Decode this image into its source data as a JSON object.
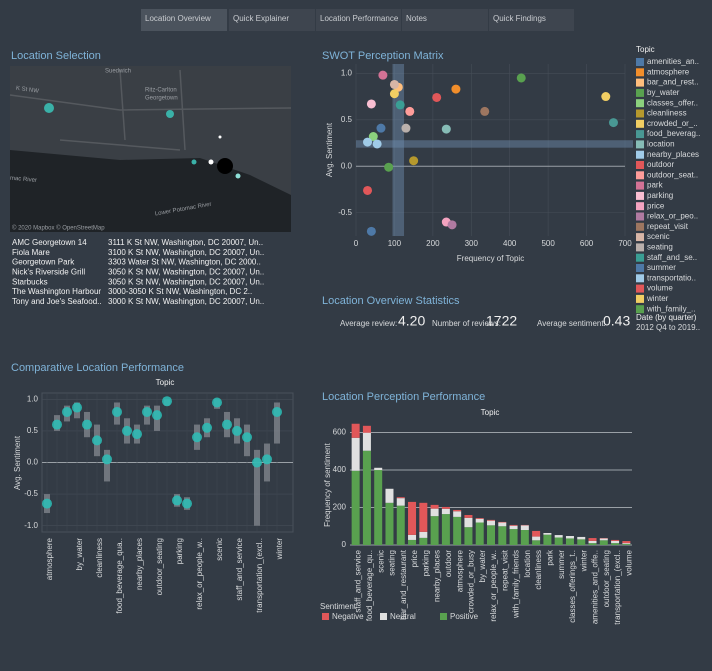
{
  "tabs": [
    "Location Overview",
    "Quick Explainer",
    "Location Performance",
    "Notes",
    "Quick Findings"
  ],
  "map": {
    "title": "Location Selection",
    "labels": [
      "Suedwich",
      "Ritz-Carlton",
      "Georgetown",
      "K St NW",
      "mac River",
      "Lower Potomac River"
    ],
    "attribution": "© 2020 Mapbox © OpenStreetMap"
  },
  "locations": [
    [
      "AMC Georgetown 14",
      "3111 K St NW, Washington, DC 20007, Un.."
    ],
    [
      "Fiola Mare",
      "3100 K St NW, Washington, DC 20007, Un.."
    ],
    [
      "Georgetown Park",
      "3303 Water St NW, Washington, DC 2000.."
    ],
    [
      "Nick's Riverside Grill",
      "3050 K St NW, Washington, DC 20007, Un.."
    ],
    [
      "Starbucks",
      "3050 K St NW, Washington, DC 20007, Un.."
    ],
    [
      "The Washington Harbour",
      "3000-3050 K St NW, Washington, DC 2.."
    ],
    [
      "Tony and Joe's Seafood..",
      "3000 K St NW, Washington, DC 20007, Un.."
    ]
  ],
  "stats": {
    "title": "Location Overview Statistics",
    "items": [
      {
        "label": "Average review:",
        "value": "4.20"
      },
      {
        "label": "Number of reviews:",
        "value": "1722"
      },
      {
        "label": "Average sentiment:",
        "value": "0.43"
      }
    ]
  },
  "date_filter": {
    "title": "Date (by quarter)",
    "value": "2012 Q4 to 2019.."
  },
  "chart_data": [
    {
      "type": "scatter",
      "title": "SWOT Perception Matrix",
      "x_label": "Frequency of Topic",
      "y_label": "Avg. Sentiment",
      "legend_title": "Topic",
      "xlim": [
        0,
        700
      ],
      "xticks": [
        0,
        100,
        200,
        300,
        400,
        500,
        600,
        700
      ],
      "ylim": [
        -0.75,
        1.1
      ],
      "yticks": [
        -0.5,
        {
          "value": 0,
          "label": "0.0"
        },
        0.5,
        {
          "value": 1,
          "label": "1.0"
        }
      ],
      "x_band": [
        95,
        125
      ],
      "y_band": [
        0.2,
        0.28
      ],
      "series": [
        {
          "name": "amenities_an..",
          "color": "#4e79a7",
          "x": [
            40
          ],
          "values": [
            -0.7
          ]
        },
        {
          "name": "atmosphere",
          "color": "#f28e2b",
          "x": [
            260
          ],
          "values": [
            0.83
          ]
        },
        {
          "name": "bar_and_rest..",
          "color": "#ffbe7d",
          "x": [
            110
          ],
          "values": [
            0.85
          ]
        },
        {
          "name": "by_water",
          "color": "#59a14f",
          "x": [
            430
          ],
          "values": [
            0.95
          ]
        },
        {
          "name": "classes_offer..",
          "color": "#8cd17d",
          "x": [
            45
          ],
          "values": [
            0.32
          ]
        },
        {
          "name": "cleanliness",
          "color": "#b6992d",
          "x": [
            150
          ],
          "values": [
            0.06
          ]
        },
        {
          "name": "crowded_or_..",
          "color": "#f1ce63",
          "x": [
            100
          ],
          "values": [
            0.78
          ]
        },
        {
          "name": "food_beverag..",
          "color": "#499894",
          "x": [
            670
          ],
          "values": [
            0.47
          ]
        },
        {
          "name": "location",
          "color": "#86bcb6",
          "x": [
            235
          ],
          "values": [
            0.4
          ]
        },
        {
          "name": "nearby_places",
          "color": "#a0cbe8",
          "x": [
            30
          ],
          "values": [
            0.26
          ]
        },
        {
          "name": "outdoor",
          "color": "#e15759",
          "x": [
            210
          ],
          "values": [
            0.74
          ]
        },
        {
          "name": "outdoor_seat..",
          "color": "#ff9d9a",
          "x": [
            140
          ],
          "values": [
            0.59
          ]
        },
        {
          "name": "park",
          "color": "#d37295",
          "x": [
            70
          ],
          "values": [
            0.98
          ]
        },
        {
          "name": "parking",
          "color": "#fabfd2",
          "x": [
            40
          ],
          "values": [
            0.67
          ]
        },
        {
          "name": "price",
          "color": "#f4a3c0",
          "x": [
            235
          ],
          "values": [
            -0.6
          ]
        },
        {
          "name": "relax_or_peo..",
          "color": "#b07aa1",
          "x": [
            250
          ],
          "values": [
            -0.63
          ]
        },
        {
          "name": "repeat_visit",
          "color": "#9d7660",
          "x": [
            335
          ],
          "values": [
            0.59
          ]
        },
        {
          "name": "scenic",
          "color": "#d7b5a6",
          "x": [
            100
          ],
          "values": [
            0.88
          ]
        },
        {
          "name": "seating",
          "color": "#bab0ac",
          "x": [
            130
          ],
          "values": [
            0.41
          ]
        },
        {
          "name": "staff_and_se..",
          "color": "#3a9e94",
          "x": [
            115
          ],
          "values": [
            0.66
          ]
        },
        {
          "name": "summer",
          "color": "#4e79a7",
          "x": [
            65
          ],
          "values": [
            0.41
          ]
        },
        {
          "name": "transportatio..",
          "color": "#a0cbe8",
          "x": [
            55
          ],
          "values": [
            0.24
          ]
        },
        {
          "name": "volume",
          "color": "#e15759",
          "x": [
            30
          ],
          "values": [
            -0.26
          ]
        },
        {
          "name": "winter",
          "color": "#f1ce63",
          "x": [
            650
          ],
          "values": [
            0.75
          ]
        },
        {
          "name": "with_family_..",
          "color": "#59a14f",
          "x": [
            85
          ],
          "values": [
            -0.01
          ]
        }
      ]
    },
    {
      "type": "box",
      "title": "Comparative Location Performance",
      "top_label": "Topic",
      "y_label": "Avg. Sentiment",
      "categories": [
        "atmosphere",
        null,
        null,
        "by_water",
        null,
        "cleanliness",
        null,
        "food_beverage_qua..",
        null,
        "nearby_places",
        null,
        "outdoor_seating",
        null,
        "parking",
        null,
        "relax_or_people_w..",
        null,
        "scenic",
        null,
        "staff_and_service",
        null,
        "transportation_(excl..",
        null,
        "winter"
      ],
      "values": [
        -0.65,
        0.6,
        0.8,
        0.87,
        0.6,
        0.35,
        0.05,
        0.8,
        0.5,
        0.45,
        0.8,
        0.75,
        0.97,
        -0.6,
        -0.65,
        0.4,
        0.55,
        0.95,
        0.6,
        0.5,
        0.4,
        0.0,
        0.05,
        0.8
      ],
      "box_low": [
        -0.8,
        0.5,
        0.65,
        0.7,
        0.4,
        0.1,
        -0.3,
        0.6,
        0.3,
        0.3,
        0.6,
        0.5,
        0.9,
        -0.7,
        -0.75,
        0.2,
        0.4,
        0.85,
        0.4,
        0.3,
        0.1,
        -1.0,
        -0.3,
        0.3
      ],
      "box_high": [
        -0.5,
        0.75,
        0.9,
        0.95,
        0.8,
        0.6,
        0.2,
        0.95,
        0.7,
        0.6,
        0.9,
        0.9,
        1.0,
        -0.5,
        -0.55,
        0.6,
        0.7,
        1.0,
        0.8,
        0.7,
        0.6,
        0.2,
        0.3,
        0.95
      ],
      "color": "#2bbfb7",
      "ylim": [
        -1.1,
        1.1
      ],
      "yticks": [
        {
          "value": -1,
          "label": "-1.0"
        },
        -0.5,
        {
          "value": 0,
          "label": "0.0"
        },
        0.5,
        {
          "value": 1,
          "label": "1.0"
        }
      ]
    },
    {
      "type": "stacked_bar",
      "title": "Location Perception Performance",
      "top_label": "Topic",
      "y_label": "Frequency of sentiment",
      "legend_title": "Sentiment",
      "categories": [
        "staff_and_service",
        "food_beverage_qu..",
        "scenic",
        "seating",
        "bar_and_restaurant",
        "price",
        "parking",
        "nearby_places",
        "outdoor",
        "atmosphere",
        "crowded_or_busy",
        "by_water",
        "relax_or_people_w..",
        "repeat_visit",
        "with_family_friends",
        "location",
        "cleanliness",
        "park",
        "summer",
        "classes_offerings_t..",
        "winter",
        "amenities_and_offe..",
        "outdoor_seating",
        "transportation_(excl..",
        "volume"
      ],
      "series": [
        {
          "name": "Negative",
          "color": "#e15759",
          "values": [
            75,
            37,
            0,
            0,
            5,
            176,
            155,
            20,
            10,
            7,
            15,
            4,
            4,
            3,
            4,
            2,
            30,
            0,
            0,
            0,
            0,
            15,
            2,
            5,
            11
          ]
        },
        {
          "name": "Neutral",
          "color": "#e0e0e0",
          "values": [
            176,
            96,
            12,
            75,
            40,
            27,
            32,
            40,
            28,
            30,
            50,
            20,
            25,
            20,
            18,
            25,
            20,
            9,
            13,
            13,
            13,
            12,
            10,
            12,
            5
          ]
        },
        {
          "name": "Positive",
          "color": "#59a14f",
          "values": [
            396,
            503,
            400,
            225,
            210,
            27,
            38,
            154,
            165,
            150,
            95,
            120,
            105,
            100,
            85,
            80,
            25,
            55,
            40,
            35,
            30,
            10,
            25,
            10,
            5
          ]
        }
      ],
      "ylim": [
        0,
        667
      ],
      "yticks": [
        0,
        200,
        400,
        600
      ],
      "grid": true
    }
  ]
}
